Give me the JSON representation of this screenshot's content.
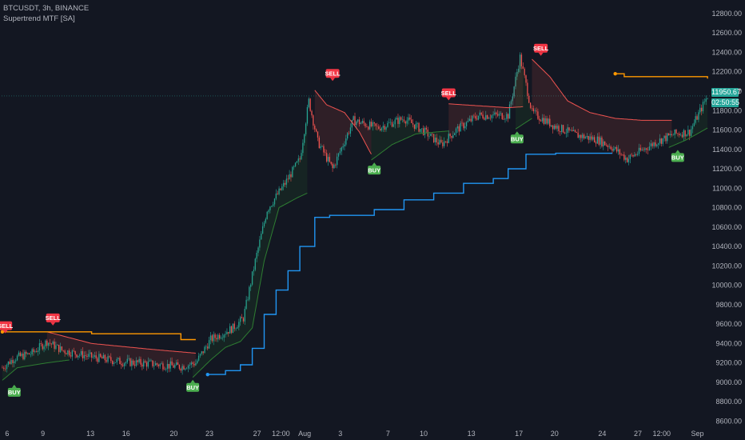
{
  "header": {
    "symbol_line": "BTCUSDT, 3h, BINANCE",
    "indicator_line": "Supertrend MTF [SA]"
  },
  "colors": {
    "background": "#131722",
    "axis_text": "#b2b5be",
    "bull_candle": "#26a69a",
    "bear_candle": "#ef5350",
    "supertrend_up": "#2e7d32",
    "supertrend_down": "#ef5350",
    "htf_up": "#2196f3",
    "htf_down": "#ff9800",
    "buy_label": "#4caf50",
    "sell_label": "#f23645",
    "price_tag": "#26a69a"
  },
  "price_tags": {
    "last_price": "11950.67",
    "countdown": "02:50:55"
  },
  "chart_data": {
    "type": "candlestick",
    "title": "",
    "xlabel": "",
    "ylabel": "",
    "ylim": [
      8570,
      12940
    ],
    "grid": false,
    "y_ticks": [
      "12800.00",
      "12600.00",
      "12400.00",
      "12200.00",
      "12000.00",
      "11800.00",
      "11600.00",
      "11400.00",
      "11200.00",
      "11000.00",
      "10800.00",
      "10600.00",
      "10400.00",
      "10200.00",
      "10000.00",
      "9800.00",
      "9600.00",
      "9400.00",
      "9200.00",
      "9000.00",
      "8800.00",
      "8600.00"
    ],
    "y_tick_values": [
      12800,
      12600,
      12400,
      12200,
      12000,
      11800,
      11600,
      11400,
      11200,
      11000,
      10800,
      10600,
      10400,
      10200,
      10000,
      9800,
      9600,
      9400,
      9200,
      9000,
      8800,
      8600
    ],
    "x_ticks": [
      "6",
      "9",
      "13",
      "16",
      "20",
      "23",
      "27",
      "12:00",
      "Aug",
      "3",
      "7",
      "10",
      "13",
      "17",
      "20",
      "24",
      "27",
      "12:00",
      "Sep"
    ],
    "x_tick_positions_bars": [
      0,
      24,
      56,
      80,
      112,
      136,
      168,
      184,
      200,
      224,
      256,
      280,
      312,
      344,
      368,
      400,
      424,
      440,
      464
    ],
    "bars_total": 475,
    "last_price": 11950.67,
    "price_path_anchors": [
      [
        0,
        9150
      ],
      [
        8,
        9250
      ],
      [
        20,
        9300
      ],
      [
        30,
        9420
      ],
      [
        40,
        9330
      ],
      [
        60,
        9260
      ],
      [
        80,
        9210
      ],
      [
        100,
        9190
      ],
      [
        120,
        9160
      ],
      [
        130,
        9200
      ],
      [
        140,
        9440
      ],
      [
        155,
        9560
      ],
      [
        162,
        9660
      ],
      [
        170,
        10250
      ],
      [
        178,
        10780
      ],
      [
        190,
        11050
      ],
      [
        200,
        11300
      ],
      [
        206,
        11900
      ],
      [
        212,
        11480
      ],
      [
        222,
        11200
      ],
      [
        236,
        11700
      ],
      [
        252,
        11620
      ],
      [
        270,
        11720
      ],
      [
        284,
        11580
      ],
      [
        295,
        11450
      ],
      [
        305,
        11600
      ],
      [
        320,
        11750
      ],
      [
        340,
        11750
      ],
      [
        348,
        12350
      ],
      [
        356,
        11780
      ],
      [
        370,
        11650
      ],
      [
        385,
        11550
      ],
      [
        400,
        11500
      ],
      [
        410,
        11420
      ],
      [
        420,
        11300
      ],
      [
        440,
        11480
      ],
      [
        452,
        11560
      ],
      [
        462,
        11580
      ],
      [
        474,
        11950
      ]
    ],
    "supertrend_segments": [
      {
        "dir": "up",
        "values": [
          [
            0,
            9020
          ],
          [
            10,
            9150
          ],
          [
            30,
            9200
          ],
          [
            45,
            9230
          ]
        ]
      },
      {
        "dir": "down",
        "values": [
          [
            30,
            9520
          ],
          [
            60,
            9400
          ],
          [
            100,
            9340
          ],
          [
            130,
            9300
          ]
        ]
      },
      {
        "dir": "up",
        "values": [
          [
            128,
            9050
          ],
          [
            140,
            9230
          ],
          [
            150,
            9360
          ],
          [
            160,
            9420
          ],
          [
            168,
            9560
          ],
          [
            176,
            10250
          ],
          [
            186,
            10800
          ],
          [
            198,
            10900
          ],
          [
            205,
            10950
          ]
        ]
      },
      {
        "dir": "down",
        "values": [
          [
            210,
            12010
          ],
          [
            218,
            11860
          ],
          [
            230,
            11780
          ],
          [
            240,
            11580
          ],
          [
            248,
            11350
          ]
        ]
      },
      {
        "dir": "up",
        "values": [
          [
            248,
            11290
          ],
          [
            262,
            11450
          ],
          [
            278,
            11560
          ],
          [
            292,
            11580
          ],
          [
            300,
            11590
          ]
        ]
      },
      {
        "dir": "down",
        "values": [
          [
            300,
            11870
          ],
          [
            320,
            11850
          ],
          [
            340,
            11830
          ],
          [
            350,
            11840
          ]
        ]
      },
      {
        "dir": "up",
        "values": [
          [
            345,
            11610
          ],
          [
            352,
            11680
          ],
          [
            356,
            11720
          ]
        ]
      },
      {
        "dir": "down",
        "values": [
          [
            356,
            12330
          ],
          [
            368,
            12150
          ],
          [
            380,
            11900
          ],
          [
            395,
            11780
          ],
          [
            412,
            11720
          ],
          [
            430,
            11700
          ],
          [
            450,
            11700
          ]
        ]
      },
      {
        "dir": "up",
        "values": [
          [
            448,
            11420
          ],
          [
            460,
            11500
          ],
          [
            474,
            11620
          ]
        ]
      }
    ],
    "htf_supertrend_segments": [
      {
        "dir": "down",
        "values": [
          [
            0,
            9520
          ],
          [
            60,
            9500
          ],
          [
            120,
            9440
          ],
          [
            130,
            9440
          ]
        ]
      },
      {
        "dir": "up",
        "values": [
          [
            138,
            9080
          ],
          [
            150,
            9120
          ],
          [
            160,
            9180
          ],
          [
            168,
            9350
          ],
          [
            176,
            9700
          ],
          [
            184,
            9950
          ],
          [
            192,
            10150
          ],
          [
            200,
            10400
          ],
          [
            210,
            10700
          ],
          [
            220,
            10720
          ],
          [
            250,
            10780
          ],
          [
            270,
            10880
          ],
          [
            290,
            10950
          ],
          [
            310,
            11050
          ],
          [
            330,
            11100
          ],
          [
            340,
            11200
          ],
          [
            352,
            11350
          ],
          [
            372,
            11360
          ],
          [
            410,
            11360
          ]
        ]
      },
      {
        "dir": "down",
        "values": [
          [
            412,
            12180
          ],
          [
            418,
            12150
          ],
          [
            474,
            12130
          ]
        ]
      }
    ],
    "signals": [
      {
        "type": "SELL",
        "bar": 2,
        "price": 9480
      },
      {
        "type": "BUY",
        "bar": 8,
        "price": 9000
      },
      {
        "type": "SELL",
        "bar": 34,
        "price": 9560
      },
      {
        "type": "BUY",
        "bar": 128,
        "price": 9050
      },
      {
        "type": "SELL",
        "bar": 222,
        "price": 12080
      },
      {
        "type": "BUY",
        "bar": 250,
        "price": 11290
      },
      {
        "type": "SELL",
        "bar": 300,
        "price": 11880
      },
      {
        "type": "BUY",
        "bar": 346,
        "price": 11610
      },
      {
        "type": "SELL",
        "bar": 362,
        "price": 12340
      },
      {
        "type": "BUY",
        "bar": 454,
        "price": 11420
      }
    ],
    "signal_text": {
      "buy": "BUY",
      "sell": "SELL"
    }
  }
}
